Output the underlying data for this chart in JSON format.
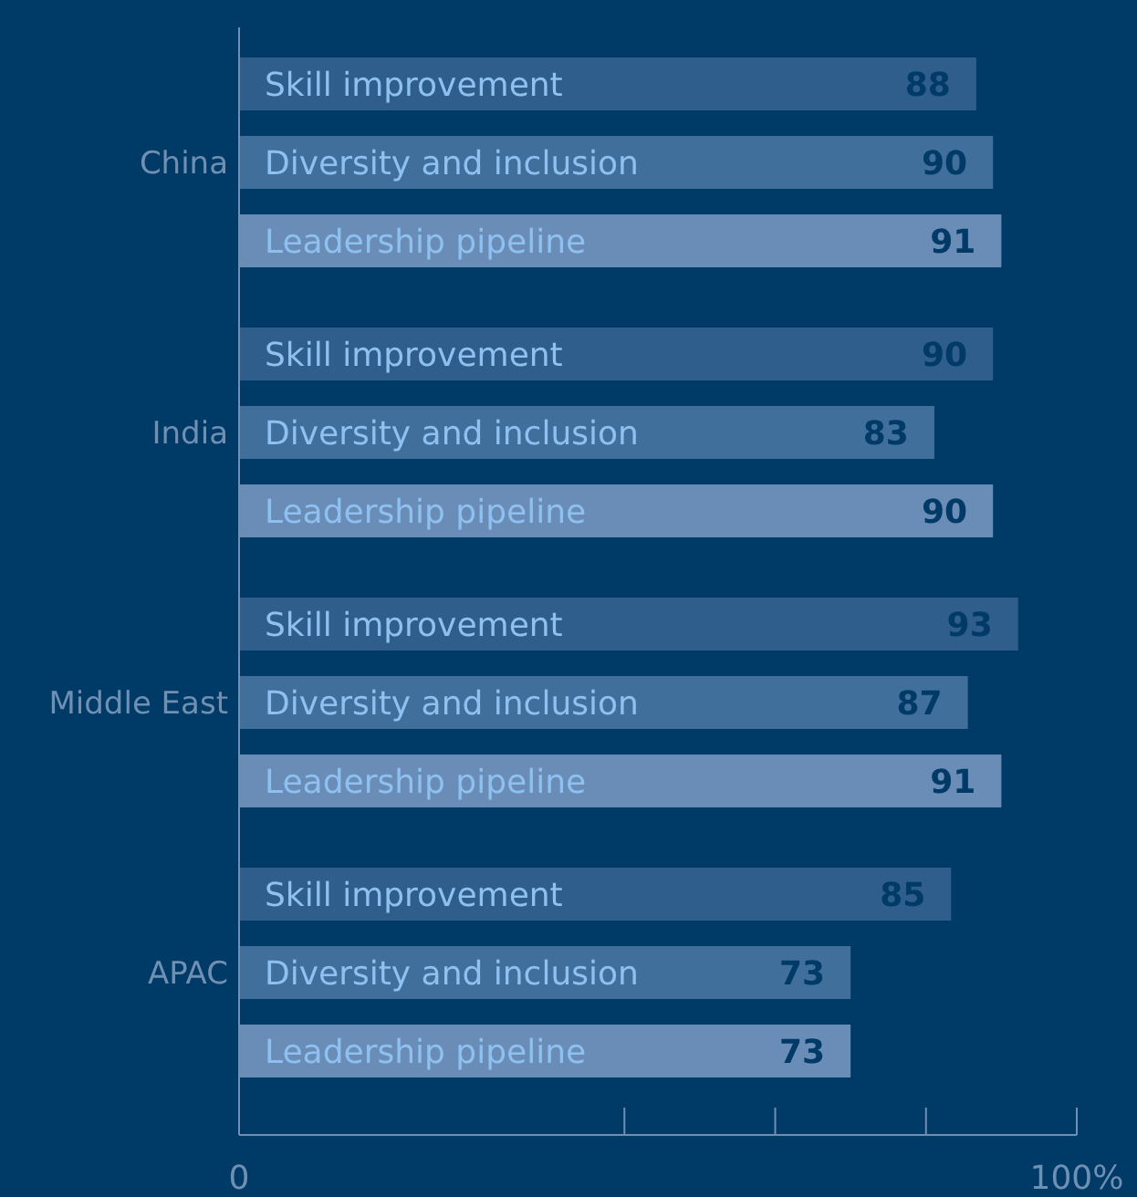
{
  "chart_data": {
    "type": "bar",
    "orientation": "horizontal",
    "categories": [
      "China",
      "India",
      "Middle East",
      "APAC"
    ],
    "series": [
      {
        "name": "Skill improvement",
        "color": "#2f5d8c",
        "values": [
          88,
          90,
          93,
          85
        ]
      },
      {
        "name": "Diversity and inclusion",
        "color": "#416f9c",
        "values": [
          90,
          83,
          87,
          73
        ]
      },
      {
        "name": "Leadership pipeline",
        "color": "#6a8db8",
        "values": [
          91,
          90,
          91,
          73
        ]
      }
    ],
    "xlim": [
      0,
      100
    ],
    "xticks": [
      0,
      {
        "value": 46,
        "label": null
      },
      {
        "value": 64,
        "label": null
      },
      {
        "value": 82,
        "label": null
      },
      {
        "value": 100,
        "label": "100%"
      }
    ],
    "data_labels": true
  }
}
